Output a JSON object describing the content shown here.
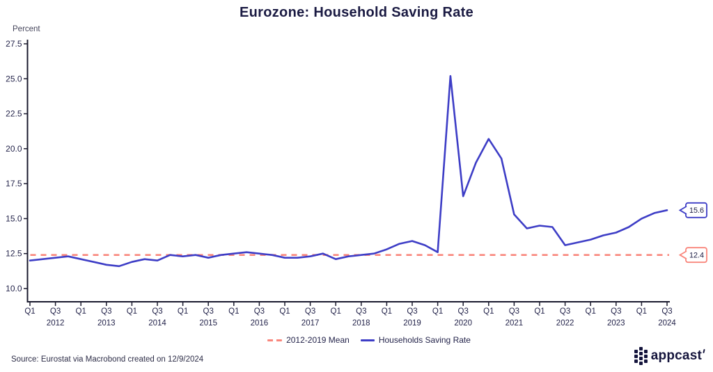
{
  "title": "Eurozone: Household Saving Rate",
  "y_axis_label": "Percent",
  "source": "Source: Eurostat via Macrobond created on 12/9/2024",
  "logo": {
    "text": "appcast"
  },
  "colors": {
    "navy": "#1A1A42",
    "line_blue": "#3D3DC6",
    "mean_salmon": "#F9867C",
    "axis": "#1A1A2E"
  },
  "legend": [
    {
      "label": "2012-2019 Mean",
      "style": "dashed",
      "color": "#F9867C"
    },
    {
      "label": "Households Saving Rate",
      "style": "solid",
      "color": "#3D3DC6"
    }
  ],
  "callouts": [
    {
      "value": "15.6",
      "at": 15.6,
      "color": "#3D3DC6"
    },
    {
      "value": "12.4",
      "at": 12.4,
      "color": "#F9867C"
    }
  ],
  "chart_data": {
    "type": "line",
    "title": "Eurozone: Household Saving Rate",
    "ylabel": "Percent",
    "yticks": [
      27.5,
      25.0,
      22.5,
      20.0,
      17.5,
      15.0,
      12.5,
      10.0
    ],
    "ylim": [
      9.1,
      28.2
    ],
    "x_start": "2012 Q1",
    "x_end": "2024 Q3",
    "frequency": "quarterly",
    "quarter_tick_labels": [
      "Q1",
      "Q3"
    ],
    "x_year_labels": [
      "2012",
      "2013",
      "2014",
      "2015",
      "2016",
      "2017",
      "2018",
      "2019",
      "2020",
      "2021",
      "2022",
      "2023",
      "2024"
    ],
    "mean_line": {
      "label": "2012-2019 Mean",
      "value": 12.4
    },
    "series": [
      {
        "name": "Households Saving Rate",
        "values": [
          12.0,
          12.1,
          12.2,
          12.3,
          12.1,
          11.9,
          11.7,
          11.6,
          11.9,
          12.1,
          12.0,
          12.4,
          12.3,
          12.4,
          12.2,
          12.4,
          12.5,
          12.6,
          12.5,
          12.4,
          12.2,
          12.2,
          12.3,
          12.5,
          12.1,
          12.3,
          12.4,
          12.5,
          12.8,
          13.2,
          13.4,
          13.1,
          12.6,
          25.2,
          16.6,
          19.0,
          20.7,
          19.3,
          15.3,
          14.3,
          14.5,
          14.4,
          13.1,
          13.3,
          13.5,
          13.8,
          14.0,
          14.4,
          15.0,
          15.4,
          15.6
        ]
      }
    ],
    "end_value_label": "15.6",
    "legend_position": "bottom",
    "grid": false
  }
}
